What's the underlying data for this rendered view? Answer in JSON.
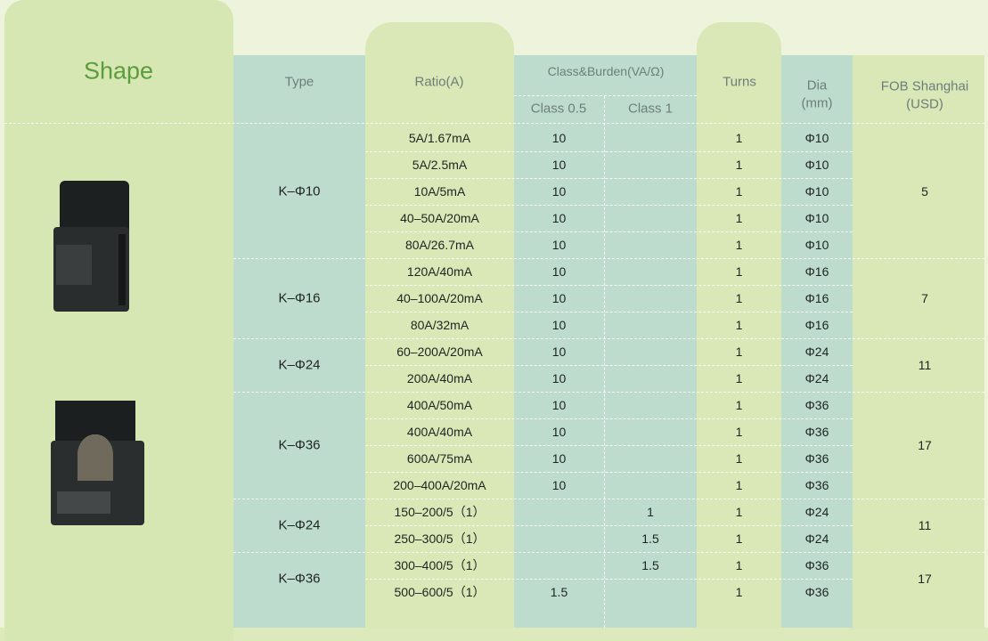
{
  "header": {
    "shape": "Shape",
    "type": "Type",
    "ratio": "Ratio(A)",
    "class_burden": "Class&Burden(VA/Ω)",
    "class_05": "Class 0.5",
    "class_1": "Class 1",
    "turns": "Turns",
    "dia": [
      "Dia",
      "(mm)"
    ],
    "fob": [
      "FOB Shanghai",
      "(USD)"
    ]
  },
  "groups": [
    {
      "type": "K–Φ10",
      "fob": "5",
      "rows": [
        [
          "5A/1.67mA",
          "10",
          null,
          "1",
          "Φ10"
        ],
        [
          "5A/2.5mA",
          "10",
          null,
          "1",
          "Φ10"
        ],
        [
          "10A/5mA",
          "10",
          null,
          "1",
          "Φ10"
        ],
        [
          "40–50A/20mA",
          "10",
          null,
          "1",
          "Φ10"
        ],
        [
          "80A/26.7mA",
          "10",
          null,
          "1",
          "Φ10"
        ]
      ]
    },
    {
      "type": "K–Φ16",
      "fob": "7",
      "rows": [
        [
          "120A/40mA",
          "10",
          null,
          "1",
          "Φ16"
        ],
        [
          "40–100A/20mA",
          "10",
          null,
          "1",
          "Φ16"
        ],
        [
          "80A/32mA",
          "10",
          null,
          "1",
          "Φ16"
        ]
      ]
    },
    {
      "type": "K–Φ24",
      "fob": "11",
      "rows": [
        [
          "60–200A/20mA",
          "10",
          null,
          "1",
          "Φ24"
        ],
        [
          "200A/40mA",
          "10",
          null,
          "1",
          "Φ24"
        ]
      ]
    },
    {
      "type": "K–Φ36",
      "fob": "17",
      "rows": [
        [
          "400A/50mA",
          "10",
          null,
          "1",
          "Φ36"
        ],
        [
          "400A/40mA",
          "10",
          null,
          "1",
          "Φ36"
        ],
        [
          "600A/75mA",
          "10",
          null,
          "1",
          "Φ36"
        ],
        [
          "200–400A/20mA",
          "10",
          null,
          "1",
          "Φ36"
        ]
      ]
    },
    {
      "type": "K–Φ24",
      "fob": "11",
      "rows": [
        [
          "150–200/5（1）",
          null,
          "1",
          "1",
          "Φ24"
        ],
        [
          "250–300/5（1）",
          null,
          "1.5",
          "1",
          "Φ24"
        ]
      ]
    },
    {
      "type": "K–Φ36",
      "fob": "17",
      "rows": [
        [
          "300–400/5（1）",
          null,
          "1.5",
          "1",
          "Φ36"
        ],
        [
          "500–600/5（1）",
          "1.5",
          null,
          "1",
          "Φ36"
        ]
      ]
    }
  ]
}
